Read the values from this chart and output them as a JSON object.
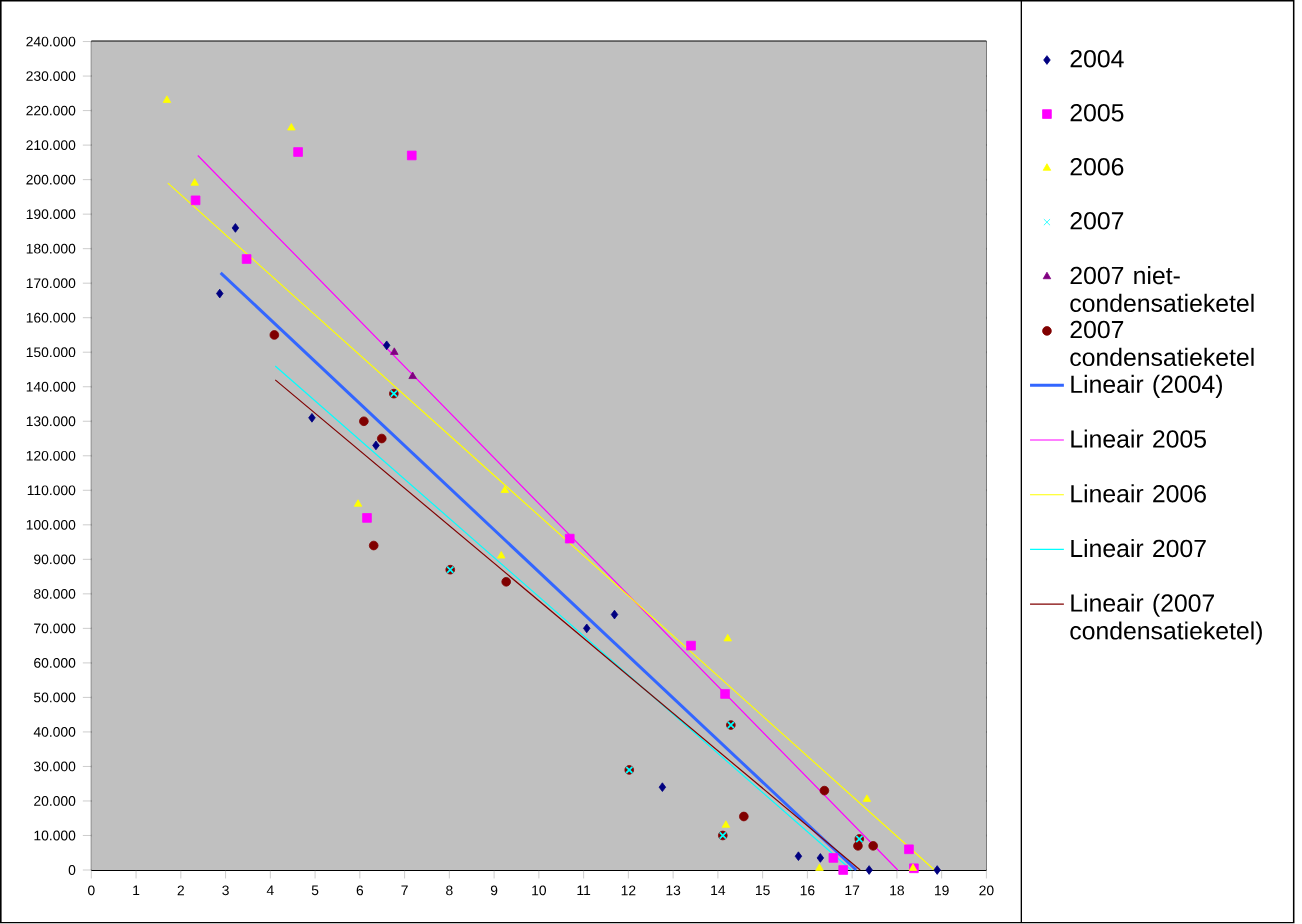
{
  "chart_data": {
    "type": "scatter",
    "xlim": [
      0,
      20
    ],
    "ylim": [
      0,
      240000
    ],
    "xticks": [
      0,
      1,
      2,
      3,
      4,
      5,
      6,
      7,
      8,
      9,
      10,
      11,
      12,
      13,
      14,
      15,
      16,
      17,
      18,
      19,
      20
    ],
    "yticks": [
      0,
      {
        "value": 10000,
        "label": "10.000"
      },
      {
        "value": 20000,
        "label": "20.000"
      },
      {
        "value": 30000,
        "label": "30.000"
      },
      {
        "value": 40000,
        "label": "40.000"
      },
      {
        "value": 50000,
        "label": "50.000"
      },
      {
        "value": 60000,
        "label": "60.000"
      },
      {
        "value": 70000,
        "label": "70.000"
      },
      {
        "value": 80000,
        "label": "80.000"
      },
      {
        "value": 90000,
        "label": "90.000"
      },
      {
        "value": 100000,
        "label": "100.000"
      },
      {
        "value": 110000,
        "label": "110.000"
      },
      {
        "value": 120000,
        "label": "120.000"
      },
      {
        "value": 130000,
        "label": "130.000"
      },
      {
        "value": 140000,
        "label": "140.000"
      },
      {
        "value": 150000,
        "label": "150.000"
      },
      {
        "value": 160000,
        "label": "160.000"
      },
      {
        "value": 170000,
        "label": "170.000"
      },
      {
        "value": 180000,
        "label": "180.000"
      },
      {
        "value": 190000,
        "label": "190.000"
      },
      {
        "value": 200000,
        "label": "200.000"
      },
      {
        "value": 210000,
        "label": "210.000"
      },
      {
        "value": 220000,
        "label": "220.000"
      },
      {
        "value": 230000,
        "label": "230.000"
      },
      {
        "value": 240000,
        "label": "240.000"
      }
    ],
    "grid": "y",
    "legend": "right",
    "series": [
      {
        "name": "2004",
        "color": "#000080",
        "type": "scatter",
        "marker": "diamond",
        "x": [
          3.22,
          2.87,
          6.6,
          4.93,
          6.36,
          11.07,
          11.69,
          12.76,
          15.8,
          16.29,
          17.38,
          18.9
        ],
        "values": [
          186000,
          167000,
          152000,
          131000,
          123000,
          70000,
          74000,
          24000,
          4000,
          3500,
          0,
          0
        ]
      },
      {
        "name": "2005",
        "color": "#ff00ff",
        "type": "scatter",
        "marker": "square",
        "x": [
          2.33,
          3.47,
          4.62,
          7.16,
          6.16,
          10.69,
          13.4,
          14.16,
          16.58,
          16.8,
          18.27,
          18.38
        ],
        "values": [
          194000,
          177000,
          208000,
          207000,
          102000,
          96000,
          65000,
          51000,
          3500,
          0,
          6000,
          500
        ]
      },
      {
        "name": "2006",
        "color": "#ffff00",
        "type": "scatter",
        "marker": "triangle",
        "x": [
          1.69,
          2.31,
          4.47,
          5.96,
          9.24,
          9.16,
          14.22,
          14.18,
          16.27,
          17.33,
          18.36
        ],
        "values": [
          223000,
          199000,
          215000,
          106000,
          110000,
          91000,
          67000,
          13000,
          500,
          20500,
          500
        ]
      },
      {
        "name": "2007",
        "color": "#00ffff",
        "type": "scatter",
        "marker": "cross",
        "x": [
          6.76,
          8.02,
          14.29,
          12.02,
          14.11,
          17.16
        ],
        "values": [
          138000,
          87000,
          42000,
          29000,
          10000,
          9000
        ]
      },
      {
        "name": "2007 niet-condensatieketel",
        "color": "#800080",
        "type": "scatter",
        "marker": "triangle",
        "x": [
          6.77,
          7.18
        ],
        "values": [
          150000,
          143000
        ]
      },
      {
        "name": "2007 condensatieketel",
        "color": "#800000",
        "type": "scatter",
        "marker": "circle",
        "x": [
          4.09,
          6.09,
          6.49,
          6.76,
          6.31,
          8.02,
          9.27,
          12.02,
          14.29,
          14.58,
          14.11,
          16.38,
          17.16,
          17.13,
          17.47
        ],
        "values": [
          155000,
          130000,
          125000,
          138000,
          94000,
          87000,
          83500,
          29000,
          42000,
          15500,
          10000,
          23000,
          9000,
          7000,
          7000
        ]
      },
      {
        "name": "Lineair (2004)",
        "color": "#3366ff",
        "type": "line",
        "marker": "none",
        "line_style": "solid",
        "x": [
          2.89,
          17.09
        ],
        "values": [
          173000,
          0
        ]
      },
      {
        "name": "Lineair 2005",
        "color": "#ff00ff",
        "type": "line",
        "marker": "none",
        "line_style": "solid",
        "x": [
          2.38,
          18.02
        ],
        "values": [
          207000,
          0
        ]
      },
      {
        "name": "Lineair 2006",
        "color": "#ffff00",
        "type": "line",
        "marker": "none",
        "line_style": "solid",
        "x": [
          1.71,
          18.84
        ],
        "values": [
          199000,
          0
        ]
      },
      {
        "name": "Lineair 2007",
        "color": "#00ffff",
        "type": "line",
        "marker": "none",
        "line_style": "solid",
        "x": [
          4.11,
          16.98
        ],
        "values": [
          146000,
          0
        ]
      },
      {
        "name": "Lineair (2007 condensatieketel)",
        "color": "#800000",
        "type": "line",
        "marker": "none",
        "line_style": "solid",
        "x": [
          4.11,
          17.18
        ],
        "values": [
          142000,
          0
        ]
      }
    ]
  }
}
